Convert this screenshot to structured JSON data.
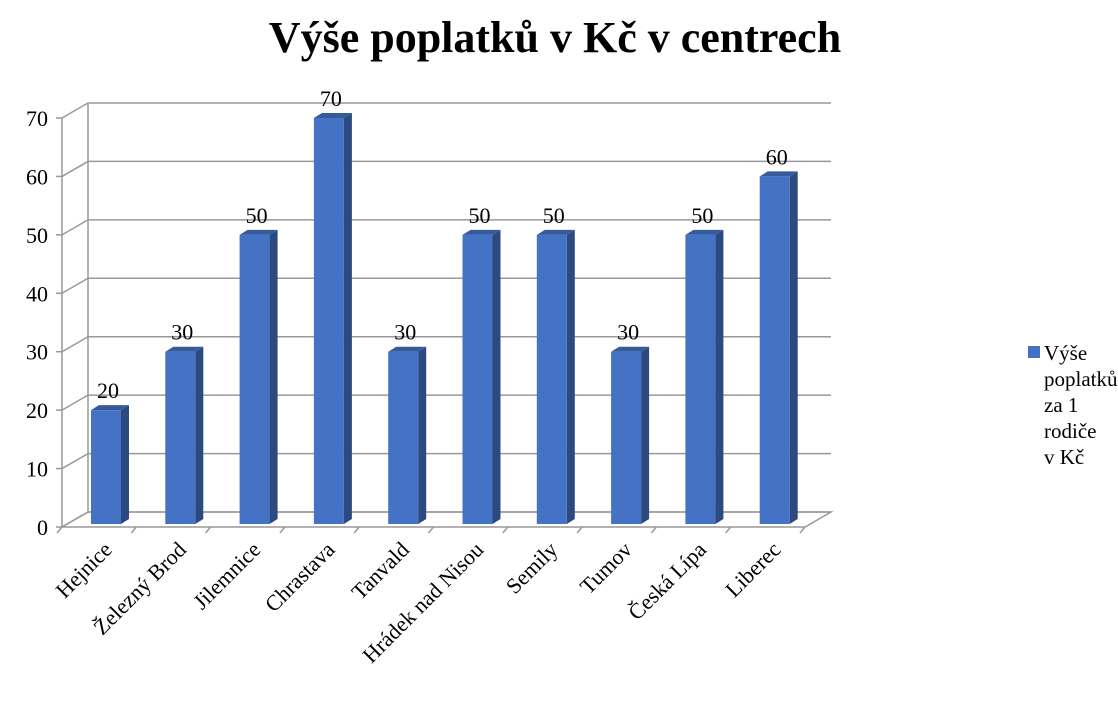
{
  "chart_data": {
    "type": "bar3d",
    "title": "Výše poplatků v Kč v centrech",
    "categories": [
      "Hejnice",
      "Železný Brod",
      "Jilemnice",
      "Chrastava",
      "Tanvald",
      "Hrádek nad Nisou",
      "Semily",
      "Tumov",
      "Česká Lípa",
      "Liberec"
    ],
    "series": [
      {
        "name": "Výše poplatků za 1 rodiče v Kč",
        "color": "#4472c4",
        "values": [
          20,
          30,
          50,
          70,
          30,
          50,
          50,
          30,
          50,
          60
        ]
      }
    ],
    "ylim": [
      0,
      70
    ],
    "yticks": [
      0,
      10,
      20,
      30,
      40,
      50,
      60,
      70
    ],
    "grid": true,
    "legend": "right"
  }
}
